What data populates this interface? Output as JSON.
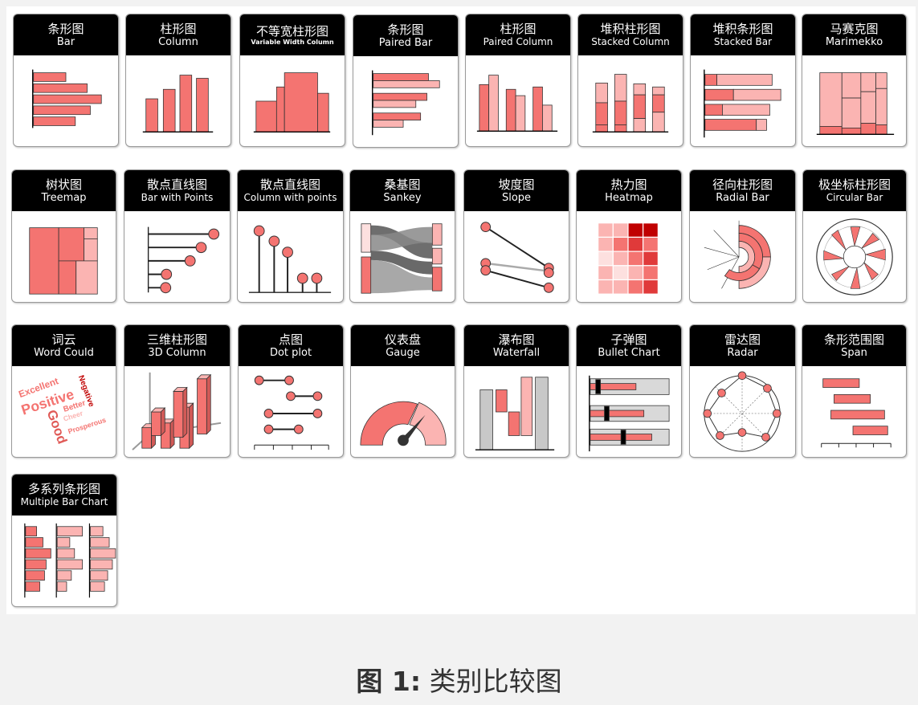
{
  "cards": [
    {
      "zh": "条形图",
      "en": "Bar",
      "icon": "bar-chart-icon"
    },
    {
      "zh": "柱形图",
      "en": "Column",
      "icon": "column-chart-icon"
    },
    {
      "zh": "不等宽柱形图",
      "en": "Variable Width Column",
      "icon": "variable-width-column-icon"
    },
    {
      "zh": "条形图",
      "en": "Paired Bar",
      "icon": "paired-bar-icon"
    },
    {
      "zh": "柱形图",
      "en": "Paired Column",
      "icon": "paired-column-icon"
    },
    {
      "zh": "堆积柱形图",
      "en": "Stacked Column",
      "icon": "stacked-column-icon"
    },
    {
      "zh": "堆积条形图",
      "en": "Stacked Bar",
      "icon": "stacked-bar-icon"
    },
    {
      "zh": "马赛克图",
      "en": "Marimekko",
      "icon": "marimekko-icon"
    },
    {
      "zh": "树状图",
      "en": "Treemap",
      "icon": "treemap-icon"
    },
    {
      "zh": "散点直线图",
      "en": "Bar with Points",
      "icon": "bar-with-points-icon"
    },
    {
      "zh": "散点直线图",
      "en": "Column with points",
      "icon": "column-with-points-icon"
    },
    {
      "zh": "桑基图",
      "en": "Sankey",
      "icon": "sankey-icon"
    },
    {
      "zh": "坡度图",
      "en": "Slope",
      "icon": "slope-icon"
    },
    {
      "zh": "热力图",
      "en": "Heatmap",
      "icon": "heatmap-icon"
    },
    {
      "zh": "径向柱形图",
      "en": "Radial Bar",
      "icon": "radial-bar-icon"
    },
    {
      "zh": "极坐标柱形图",
      "en": "Circular Bar",
      "icon": "circular-bar-icon"
    },
    {
      "zh": "词云",
      "en": "Word Could",
      "icon": "word-cloud-icon"
    },
    {
      "zh": "三维柱形图",
      "en": "3D Column",
      "icon": "3d-column-icon"
    },
    {
      "zh": "点图",
      "en": "Dot plot",
      "icon": "dot-plot-icon"
    },
    {
      "zh": "仪表盘",
      "en": "Gauge",
      "icon": "gauge-icon"
    },
    {
      "zh": "瀑布图",
      "en": "Waterfall",
      "icon": "waterfall-icon"
    },
    {
      "zh": "子弹图",
      "en": "Bullet Chart",
      "icon": "bullet-chart-icon"
    },
    {
      "zh": "雷达图",
      "en": "Radar",
      "icon": "radar-icon"
    },
    {
      "zh": "条形范围图",
      "en": "Span",
      "icon": "span-icon"
    },
    {
      "zh": "多系列条形图",
      "en": "Multiple Bar Chart",
      "icon": "multiple-bar-chart-icon"
    }
  ],
  "word_cloud": [
    "Excellent",
    "Positive",
    "Good",
    "Negative",
    "Better",
    "Cheer",
    "Prosperous"
  ],
  "caption": {
    "label": "图 1:",
    "text": "类别比较图"
  },
  "colors": {
    "main": "#f47471",
    "light": "#fbb4b2",
    "pale": "#fde0df",
    "dark": "#c00000",
    "header": "#000000"
  }
}
